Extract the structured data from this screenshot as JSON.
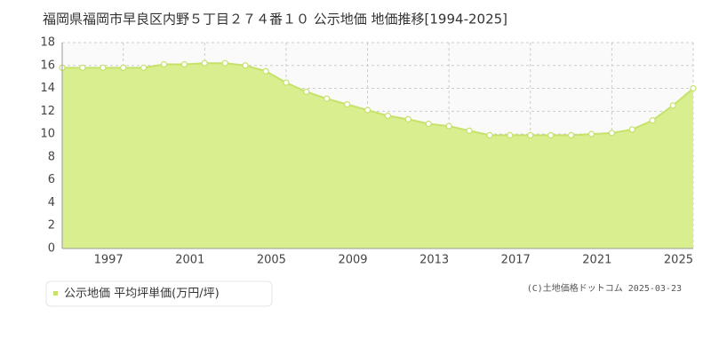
{
  "chart_data": {
    "type": "area",
    "title": "福岡県福岡市早良区内野５丁目２７４番１０ 公示地価 地価推移[1994-2025]",
    "x": [
      1994,
      1995,
      1996,
      1997,
      1998,
      1999,
      2000,
      2001,
      2002,
      2003,
      2004,
      2005,
      2006,
      2007,
      2008,
      2009,
      2010,
      2011,
      2012,
      2013,
      2014,
      2015,
      2016,
      2017,
      2018,
      2019,
      2020,
      2021,
      2022,
      2023,
      2024,
      2025
    ],
    "series": [
      {
        "name": "公示地価 平均坪単価(万円/坪)",
        "color": "#c5e26a",
        "fill": "#d9ee8e",
        "values": [
          15.8,
          15.8,
          15.8,
          15.8,
          15.8,
          16.1,
          16.1,
          16.2,
          16.2,
          16.0,
          15.5,
          14.5,
          13.7,
          13.1,
          12.6,
          12.1,
          11.6,
          11.3,
          10.9,
          10.7,
          10.3,
          9.9,
          9.9,
          9.9,
          9.9,
          9.9,
          10.0,
          10.1,
          10.4,
          11.2,
          12.5,
          14.0
        ]
      }
    ],
    "xlim": [
      1994,
      2025
    ],
    "xticks": [
      1997,
      2001,
      2005,
      2009,
      2013,
      2017,
      2021,
      2025
    ],
    "ylim": [
      0,
      18
    ],
    "yticks": [
      0,
      2,
      4,
      6,
      8,
      10,
      12,
      14,
      16,
      18
    ],
    "grid": true,
    "annotation": "(C)土地価格ドットコム 2025-03-23"
  }
}
